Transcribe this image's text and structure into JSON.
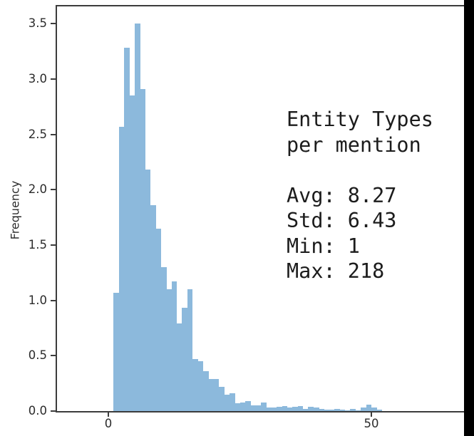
{
  "figure": {
    "bar_color": "#8cb9dc",
    "spine_color": "#3c3c3c",
    "tick_text_color": "#2b2b2b",
    "annotation_text_color": "#1c1c1c",
    "background_color": "#ffffff",
    "crop_band_color": "#000000"
  },
  "chart_data": {
    "type": "bar",
    "subtype": "histogram",
    "title": "",
    "xlabel": "",
    "ylabel": "Frequency",
    "legend": null,
    "grid": false,
    "xlim": [
      -9.8,
      67.6
    ],
    "ylim": [
      0,
      3.66
    ],
    "x_ticks": {
      "values": [
        0,
        50
      ],
      "labels": [
        "0",
        "50"
      ]
    },
    "y_ticks": {
      "values": [
        0.0,
        0.5,
        1.0,
        1.5,
        2.0,
        2.5,
        3.0,
        3.5
      ],
      "labels": [
        "0.0",
        "0.5",
        "1.0",
        "1.5",
        "2.0",
        "2.5",
        "3.0",
        "3.5"
      ]
    },
    "bin_start": 1,
    "bin_width": 1,
    "values": [
      1.07,
      2.57,
      3.28,
      2.85,
      3.5,
      2.91,
      2.18,
      1.86,
      1.65,
      1.3,
      1.1,
      1.17,
      0.79,
      0.93,
      1.1,
      0.47,
      0.45,
      0.36,
      0.29,
      0.29,
      0.22,
      0.15,
      0.16,
      0.07,
      0.08,
      0.09,
      0.05,
      0.05,
      0.08,
      0.03,
      0.03,
      0.04,
      0.045,
      0.03,
      0.04,
      0.045,
      0.02,
      0.04,
      0.035,
      0.02,
      0.015,
      0.01,
      0.02,
      0.015,
      0.005,
      0.02,
      0.005,
      0.03,
      0.055,
      0.035,
      0.015
    ],
    "annotation": {
      "text": "Entity Types\nper mention\n\nAvg: 8.27\nStd: 6.43\nMin: 1\nMax: 218",
      "title_lines": [
        "Entity Types",
        "per mention"
      ],
      "stats": {
        "avg": "8.27",
        "std": "6.43",
        "min": "1",
        "max": "218"
      }
    }
  }
}
